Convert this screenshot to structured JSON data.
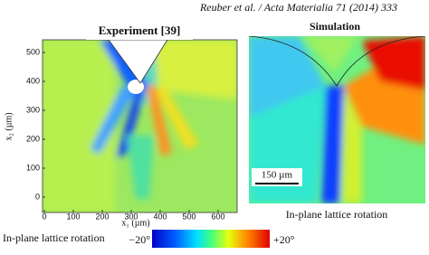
{
  "header": {
    "citation": "Reuber et al. / Acta Materialia 71 (2014) 333"
  },
  "experiment_panel": {
    "title": "Experiment [39]",
    "x_axis": {
      "label": "x₁ (µm)",
      "ticks": [
        0,
        100,
        200,
        300,
        400,
        500,
        600
      ]
    },
    "y_axis": {
      "label": "x₂ (µm)",
      "ticks": [
        0,
        100,
        200,
        300,
        400,
        500
      ]
    }
  },
  "simulation_panel": {
    "title": "Simulation",
    "scale_bar": "150 µm",
    "caption": "In-plane lattice rotation"
  },
  "colorbar": {
    "label": "In-plane lattice rotation",
    "min_label": "−20°",
    "max_label": "+20°"
  }
}
